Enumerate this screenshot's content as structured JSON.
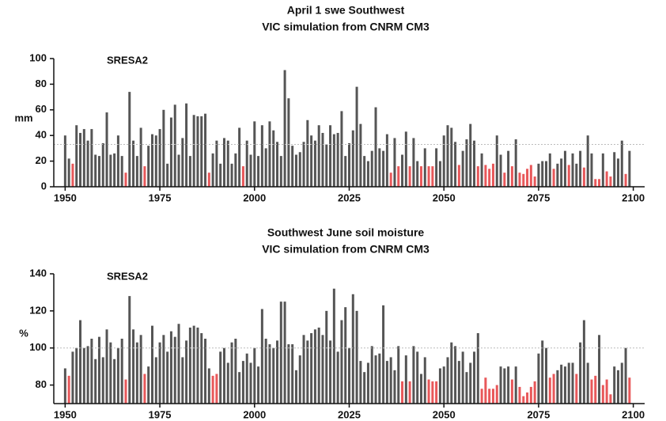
{
  "chart_data": [
    {
      "type": "bar",
      "title": "April 1 swe Southwest",
      "subtitle": "VIC simulation from CNRM CM3",
      "annotation": "SRESA2",
      "ylabel": "mm",
      "x": [
        1950,
        1951,
        1952,
        1953,
        1954,
        1955,
        1956,
        1957,
        1958,
        1959,
        1960,
        1961,
        1962,
        1963,
        1964,
        1965,
        1966,
        1967,
        1968,
        1969,
        1970,
        1971,
        1972,
        1973,
        1974,
        1975,
        1976,
        1977,
        1978,
        1979,
        1980,
        1981,
        1982,
        1983,
        1984,
        1985,
        1986,
        1987,
        1988,
        1989,
        1990,
        1991,
        1992,
        1993,
        1994,
        1995,
        1996,
        1997,
        1998,
        1999,
        2000,
        2001,
        2002,
        2003,
        2004,
        2005,
        2006,
        2007,
        2008,
        2009,
        2010,
        2011,
        2012,
        2013,
        2014,
        2015,
        2016,
        2017,
        2018,
        2019,
        2020,
        2021,
        2022,
        2023,
        2024,
        2025,
        2026,
        2027,
        2028,
        2029,
        2030,
        2031,
        2032,
        2033,
        2034,
        2035,
        2036,
        2037,
        2038,
        2039,
        2040,
        2041,
        2042,
        2043,
        2044,
        2045,
        2046,
        2047,
        2048,
        2049,
        2050,
        2051,
        2052,
        2053,
        2054,
        2055,
        2056,
        2057,
        2058,
        2059,
        2060,
        2061,
        2062,
        2063,
        2064,
        2065,
        2066,
        2067,
        2068,
        2069,
        2070,
        2071,
        2072,
        2073,
        2074,
        2075,
        2076,
        2077,
        2078,
        2079,
        2080,
        2081,
        2082,
        2083,
        2084,
        2085,
        2086,
        2087,
        2088,
        2089,
        2090,
        2091,
        2092,
        2093,
        2094,
        2095,
        2096,
        2097,
        2098,
        2099
      ],
      "values": [
        40,
        22,
        18,
        48,
        42,
        45,
        36,
        45,
        25,
        24,
        34,
        58,
        25,
        26,
        40,
        24,
        11,
        74,
        36,
        24,
        46,
        16,
        32,
        41,
        40,
        45,
        60,
        18,
        54,
        64,
        25,
        38,
        65,
        24,
        56,
        55,
        55,
        57,
        11,
        26,
        36,
        18,
        38,
        36,
        18,
        26,
        46,
        16,
        36,
        25,
        51,
        24,
        48,
        30,
        51,
        44,
        35,
        24,
        91,
        69,
        32,
        25,
        27,
        35,
        52,
        40,
        36,
        48,
        42,
        33,
        48,
        41,
        42,
        59,
        24,
        34,
        44,
        78,
        49,
        24,
        20,
        28,
        62,
        30,
        28,
        41,
        11,
        38,
        16,
        25,
        43,
        16,
        38,
        20,
        16,
        30,
        16,
        16,
        30,
        20,
        40,
        48,
        46,
        35,
        17,
        28,
        37,
        49,
        36,
        16,
        26,
        17,
        14,
        18,
        40,
        25,
        11,
        28,
        16,
        37,
        11,
        10,
        14,
        17,
        8,
        18,
        20,
        20,
        26,
        14,
        18,
        22,
        28,
        17,
        26,
        18,
        28,
        15,
        40,
        26,
        6,
        6,
        26,
        12,
        8,
        27,
        22,
        36,
        10,
        28
      ],
      "colors": [
        "#555",
        "#555",
        "#e8585a",
        "#555",
        "#555",
        "#555",
        "#555",
        "#555",
        "#555",
        "#555",
        "#555",
        "#555",
        "#555",
        "#555",
        "#555",
        "#555",
        "#e8585a",
        "#555",
        "#555",
        "#555",
        "#555",
        "#e8585a",
        "#555",
        "#555",
        "#555",
        "#555",
        "#555",
        "#555",
        "#555",
        "#555",
        "#555",
        "#555",
        "#555",
        "#555",
        "#555",
        "#555",
        "#555",
        "#555",
        "#e8585a",
        "#555",
        "#555",
        "#555",
        "#555",
        "#555",
        "#555",
        "#555",
        "#555",
        "#e8585a",
        "#555",
        "#555",
        "#555",
        "#555",
        "#555",
        "#555",
        "#555",
        "#555",
        "#555",
        "#555",
        "#555",
        "#555",
        "#555",
        "#555",
        "#555",
        "#555",
        "#555",
        "#555",
        "#555",
        "#555",
        "#555",
        "#555",
        "#555",
        "#555",
        "#555",
        "#555",
        "#555",
        "#555",
        "#555",
        "#555",
        "#555",
        "#555",
        "#555",
        "#555",
        "#555",
        "#555",
        "#555",
        "#555",
        "#e8585a",
        "#555",
        "#e8585a",
        "#555",
        "#555",
        "#e8585a",
        "#555",
        "#555",
        "#e8585a",
        "#555",
        "#e8585a",
        "#e8585a",
        "#555",
        "#555",
        "#555",
        "#555",
        "#555",
        "#555",
        "#e8585a",
        "#555",
        "#555",
        "#555",
        "#555",
        "#e8585a",
        "#555",
        "#e8585a",
        "#e8585a",
        "#e8585a",
        "#555",
        "#555",
        "#e8585a",
        "#555",
        "#e8585a",
        "#555",
        "#e8585a",
        "#e8585a",
        "#e8585a",
        "#e8585a",
        "#e8585a",
        "#555",
        "#555",
        "#555",
        "#555",
        "#e8585a",
        "#555",
        "#555",
        "#555",
        "#e8585a",
        "#555",
        "#555",
        "#555",
        "#e8585a",
        "#555",
        "#555",
        "#e8585a",
        "#e8585a",
        "#555",
        "#e8585a",
        "#e8585a",
        "#555",
        "#555",
        "#555",
        "#e8585a",
        "#555"
      ],
      "reference_line": 33,
      "xlim": [
        1947,
        2103
      ],
      "xticks": [
        1950,
        1975,
        2000,
        2025,
        2050,
        2075,
        2100
      ],
      "ylim": [
        0,
        100
      ],
      "yticks": [
        0,
        20,
        40,
        60,
        80,
        100
      ]
    },
    {
      "type": "bar",
      "title": "Southwest June soil moisture",
      "subtitle": "VIC simulation from CNRM CM3",
      "annotation": "SRESA2",
      "ylabel": "%",
      "x": [
        1950,
        1951,
        1952,
        1953,
        1954,
        1955,
        1956,
        1957,
        1958,
        1959,
        1960,
        1961,
        1962,
        1963,
        1964,
        1965,
        1966,
        1967,
        1968,
        1969,
        1970,
        1971,
        1972,
        1973,
        1974,
        1975,
        1976,
        1977,
        1978,
        1979,
        1980,
        1981,
        1982,
        1983,
        1984,
        1985,
        1986,
        1987,
        1988,
        1989,
        1990,
        1991,
        1992,
        1993,
        1994,
        1995,
        1996,
        1997,
        1998,
        1999,
        2000,
        2001,
        2002,
        2003,
        2004,
        2005,
        2006,
        2007,
        2008,
        2009,
        2010,
        2011,
        2012,
        2013,
        2014,
        2015,
        2016,
        2017,
        2018,
        2019,
        2020,
        2021,
        2022,
        2023,
        2024,
        2025,
        2026,
        2027,
        2028,
        2029,
        2030,
        2031,
        2032,
        2033,
        2034,
        2035,
        2036,
        2037,
        2038,
        2039,
        2040,
        2041,
        2042,
        2043,
        2044,
        2045,
        2046,
        2047,
        2048,
        2049,
        2050,
        2051,
        2052,
        2053,
        2054,
        2055,
        2056,
        2057,
        2058,
        2059,
        2060,
        2061,
        2062,
        2063,
        2064,
        2065,
        2066,
        2067,
        2068,
        2069,
        2070,
        2071,
        2072,
        2073,
        2074,
        2075,
        2076,
        2077,
        2078,
        2079,
        2080,
        2081,
        2082,
        2083,
        2084,
        2085,
        2086,
        2087,
        2088,
        2089,
        2090,
        2091,
        2092,
        2093,
        2094,
        2095,
        2096,
        2097,
        2098,
        2099
      ],
      "values": [
        89,
        85,
        98,
        100,
        115,
        100,
        101,
        105,
        94,
        106,
        95,
        110,
        103,
        94,
        100,
        105,
        83,
        128,
        110,
        103,
        107,
        86,
        90,
        112,
        95,
        103,
        107,
        98,
        109,
        106,
        113,
        95,
        104,
        111,
        112,
        111,
        108,
        105,
        89,
        85,
        86,
        98,
        100,
        92,
        103,
        105,
        87,
        93,
        97,
        92,
        100,
        90,
        121,
        105,
        102,
        100,
        104,
        125,
        125,
        102,
        102,
        88,
        96,
        107,
        104,
        108,
        110,
        111,
        107,
        120,
        104,
        132,
        98,
        115,
        122,
        100,
        129,
        120,
        93,
        87,
        92,
        101,
        96,
        97,
        123,
        93,
        95,
        88,
        101,
        82,
        96,
        82,
        101,
        98,
        86,
        95,
        83,
        82,
        82,
        89,
        90,
        95,
        103,
        101,
        93,
        98,
        87,
        92,
        98,
        108,
        78,
        84,
        78,
        78,
        80,
        90,
        89,
        90,
        83,
        90,
        79,
        74,
        76,
        79,
        82,
        97,
        104,
        100,
        84,
        86,
        88,
        91,
        90,
        92,
        92,
        86,
        103,
        115,
        92,
        83,
        85,
        107,
        80,
        83,
        75,
        90,
        88,
        92,
        100,
        84
      ],
      "colors": [
        "#555",
        "#e8585a",
        "#555",
        "#555",
        "#555",
        "#555",
        "#555",
        "#555",
        "#555",
        "#555",
        "#555",
        "#555",
        "#555",
        "#555",
        "#555",
        "#555",
        "#e8585a",
        "#555",
        "#555",
        "#555",
        "#555",
        "#e8585a",
        "#555",
        "#555",
        "#555",
        "#555",
        "#555",
        "#555",
        "#555",
        "#555",
        "#555",
        "#555",
        "#555",
        "#555",
        "#555",
        "#555",
        "#555",
        "#555",
        "#555",
        "#e8585a",
        "#e8585a",
        "#555",
        "#555",
        "#555",
        "#555",
        "#555",
        "#555",
        "#555",
        "#555",
        "#555",
        "#555",
        "#555",
        "#555",
        "#555",
        "#555",
        "#555",
        "#555",
        "#555",
        "#555",
        "#555",
        "#555",
        "#555",
        "#555",
        "#555",
        "#555",
        "#555",
        "#555",
        "#555",
        "#555",
        "#555",
        "#555",
        "#555",
        "#555",
        "#555",
        "#555",
        "#555",
        "#555",
        "#555",
        "#555",
        "#555",
        "#555",
        "#555",
        "#555",
        "#555",
        "#555",
        "#555",
        "#555",
        "#555",
        "#555",
        "#e8585a",
        "#555",
        "#e8585a",
        "#555",
        "#555",
        "#555",
        "#555",
        "#e8585a",
        "#e8585a",
        "#e8585a",
        "#555",
        "#555",
        "#555",
        "#555",
        "#555",
        "#555",
        "#555",
        "#555",
        "#555",
        "#555",
        "#555",
        "#e8585a",
        "#e8585a",
        "#e8585a",
        "#e8585a",
        "#e8585a",
        "#555",
        "#555",
        "#555",
        "#e8585a",
        "#555",
        "#e8585a",
        "#e8585a",
        "#e8585a",
        "#e8585a",
        "#e8585a",
        "#555",
        "#555",
        "#555",
        "#e8585a",
        "#e8585a",
        "#555",
        "#555",
        "#555",
        "#555",
        "#555",
        "#e8585a",
        "#555",
        "#555",
        "#555",
        "#e8585a",
        "#e8585a",
        "#555",
        "#e8585a",
        "#e8585a",
        "#e8585a",
        "#555",
        "#555",
        "#555",
        "#555",
        "#e8585a"
      ],
      "reference_line": 100,
      "xlim": [
        1947,
        2103
      ],
      "xticks": [
        1950,
        1975,
        2000,
        2025,
        2050,
        2075,
        2100
      ],
      "ylim": [
        70,
        140
      ],
      "yticks": [
        80,
        100,
        120,
        140
      ]
    }
  ]
}
